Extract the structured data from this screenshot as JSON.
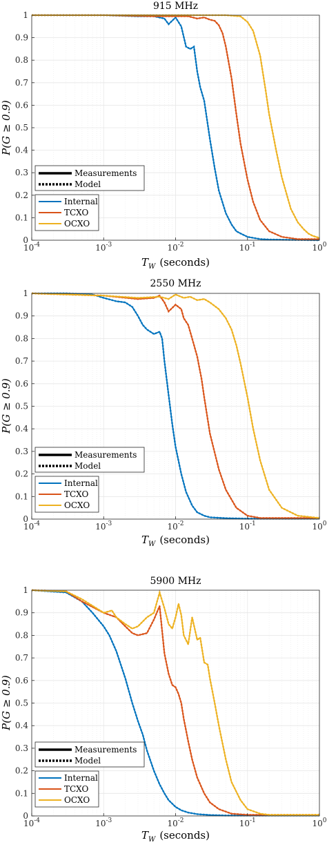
{
  "figure": {
    "x_tick_labels": [
      "10",
      "10",
      "10",
      "10",
      "10"
    ],
    "x_tick_exponents": [
      "-4",
      "-3",
      "-2",
      "-1",
      "0"
    ],
    "y_tick_labels": [
      "0",
      "0.1",
      "0.2",
      "0.3",
      "0.4",
      "0.5",
      "0.6",
      "0.7",
      "0.8",
      "0.9",
      "1"
    ],
    "xlabel_var": "T",
    "xlabel_sub": "W",
    "xlabel_unit": "(seconds)",
    "ylabel": "P(G ≥ 0.9)",
    "legend_styles": [
      "Measurements",
      "Model"
    ],
    "colors": {
      "Internal": "#0072BD",
      "TCXO": "#D95319",
      "OCXO": "#EDB120",
      "grid": "#e6e6e6",
      "axis": "#262626"
    }
  },
  "chart_data": [
    {
      "type": "line",
      "title": "915 MHz",
      "x_scale": "log",
      "xlim": [
        0.0001,
        1
      ],
      "ylim": [
        0,
        1
      ],
      "grid": true,
      "legend_location": "bottom-left",
      "series": [
        {
          "name": "Internal",
          "x": [
            0.0001,
            0.0003,
            0.001,
            0.003,
            0.005,
            0.007,
            0.008,
            0.01,
            0.012,
            0.014,
            0.016,
            0.018,
            0.02,
            0.022,
            0.025,
            0.03,
            0.035,
            0.04,
            0.05,
            0.06,
            0.07,
            0.08,
            0.1,
            0.15,
            0.2,
            1
          ],
          "y": [
            1,
            1,
            1,
            0.995,
            0.995,
            0.985,
            0.96,
            0.99,
            0.95,
            0.86,
            0.85,
            0.86,
            0.75,
            0.68,
            0.62,
            0.45,
            0.32,
            0.22,
            0.12,
            0.07,
            0.04,
            0.03,
            0.015,
            0.005,
            0.003,
            0
          ]
        },
        {
          "name": "TCXO",
          "x": [
            0.0001,
            0.001,
            0.005,
            0.01,
            0.015,
            0.02,
            0.025,
            0.03,
            0.035,
            0.04,
            0.045,
            0.05,
            0.06,
            0.07,
            0.08,
            0.1,
            0.12,
            0.15,
            0.2,
            0.3,
            0.5,
            1
          ],
          "y": [
            1,
            1,
            0.995,
            0.995,
            0.995,
            0.985,
            0.99,
            0.98,
            0.975,
            0.955,
            0.92,
            0.86,
            0.72,
            0.56,
            0.43,
            0.27,
            0.17,
            0.09,
            0.04,
            0.015,
            0.005,
            0.005
          ]
        },
        {
          "name": "OCXO",
          "x": [
            0.0001,
            0.001,
            0.01,
            0.05,
            0.08,
            0.1,
            0.12,
            0.15,
            0.18,
            0.2,
            0.25,
            0.3,
            0.4,
            0.5,
            0.6,
            0.7,
            0.8,
            1
          ],
          "y": [
            1,
            1,
            1,
            1,
            0.995,
            0.97,
            0.93,
            0.82,
            0.66,
            0.56,
            0.4,
            0.28,
            0.14,
            0.08,
            0.05,
            0.03,
            0.02,
            0.01
          ]
        }
      ]
    },
    {
      "type": "line",
      "title": "2550 MHz",
      "x_scale": "log",
      "xlim": [
        0.0001,
        1
      ],
      "ylim": [
        0,
        1
      ],
      "grid": true,
      "legend_location": "bottom-left",
      "series": [
        {
          "name": "Internal",
          "x": [
            0.0001,
            0.0003,
            0.0007,
            0.001,
            0.0015,
            0.002,
            0.0025,
            0.003,
            0.0035,
            0.004,
            0.005,
            0.006,
            0.0065,
            0.007,
            0.008,
            0.009,
            0.01,
            0.012,
            0.014,
            0.017,
            0.02,
            0.025,
            0.03,
            0.05,
            0.1,
            1
          ],
          "y": [
            1,
            1,
            0.995,
            0.98,
            0.965,
            0.96,
            0.94,
            0.9,
            0.86,
            0.84,
            0.82,
            0.83,
            0.8,
            0.7,
            0.55,
            0.42,
            0.32,
            0.2,
            0.12,
            0.06,
            0.03,
            0.015,
            0.008,
            0.004,
            0.002,
            0.002
          ]
        },
        {
          "name": "TCXO",
          "x": [
            0.0001,
            0.001,
            0.003,
            0.005,
            0.006,
            0.007,
            0.008,
            0.01,
            0.012,
            0.013,
            0.015,
            0.017,
            0.02,
            0.023,
            0.025,
            0.03,
            0.04,
            0.05,
            0.07,
            0.1,
            0.15,
            1
          ],
          "y": [
            1,
            0.99,
            0.975,
            0.98,
            0.99,
            0.96,
            0.92,
            0.95,
            0.93,
            0.89,
            0.86,
            0.8,
            0.72,
            0.62,
            0.54,
            0.38,
            0.22,
            0.13,
            0.05,
            0.015,
            0.005,
            0.005
          ]
        },
        {
          "name": "OCXO",
          "x": [
            0.0001,
            0.001,
            0.003,
            0.006,
            0.008,
            0.01,
            0.013,
            0.016,
            0.02,
            0.025,
            0.03,
            0.04,
            0.05,
            0.06,
            0.07,
            0.08,
            0.1,
            0.12,
            0.15,
            0.2,
            0.3,
            0.5,
            1
          ],
          "y": [
            1,
            0.99,
            0.98,
            0.985,
            0.975,
            0.995,
            0.98,
            0.985,
            0.97,
            0.975,
            0.96,
            0.93,
            0.89,
            0.84,
            0.77,
            0.69,
            0.54,
            0.4,
            0.26,
            0.13,
            0.05,
            0.015,
            0.005
          ]
        }
      ]
    },
    {
      "type": "line",
      "title": "5900 MHz",
      "x_scale": "log",
      "xlim": [
        0.0001,
        1
      ],
      "ylim": [
        0,
        1
      ],
      "grid": true,
      "legend_location": "bottom-left",
      "series": [
        {
          "name": "Internal",
          "x": [
            0.0001,
            0.0003,
            0.0005,
            0.0007,
            0.001,
            0.0012,
            0.0015,
            0.002,
            0.0025,
            0.003,
            0.0035,
            0.004,
            0.005,
            0.006,
            0.007,
            0.008,
            0.01,
            0.012,
            0.015,
            0.02,
            0.03,
            0.05,
            1
          ],
          "y": [
            1,
            0.99,
            0.95,
            0.9,
            0.84,
            0.8,
            0.73,
            0.61,
            0.5,
            0.42,
            0.36,
            0.29,
            0.2,
            0.14,
            0.1,
            0.07,
            0.04,
            0.025,
            0.015,
            0.008,
            0.004,
            0.002,
            0.002
          ]
        },
        {
          "name": "TCXO",
          "x": [
            0.0001,
            0.0003,
            0.0005,
            0.001,
            0.0015,
            0.002,
            0.0025,
            0.003,
            0.004,
            0.005,
            0.006,
            0.0065,
            0.007,
            0.008,
            0.009,
            0.01,
            0.011,
            0.012,
            0.013,
            0.015,
            0.017,
            0.02,
            0.025,
            0.03,
            0.04,
            0.06,
            0.1,
            1
          ],
          "y": [
            1,
            0.995,
            0.95,
            0.9,
            0.88,
            0.84,
            0.81,
            0.8,
            0.81,
            0.87,
            0.93,
            0.82,
            0.72,
            0.63,
            0.58,
            0.57,
            0.54,
            0.5,
            0.43,
            0.33,
            0.25,
            0.17,
            0.1,
            0.06,
            0.03,
            0.01,
            0.005,
            0.005
          ]
        },
        {
          "name": "OCXO",
          "x": [
            0.0001,
            0.0003,
            0.0005,
            0.001,
            0.0013,
            0.0015,
            0.002,
            0.0025,
            0.003,
            0.004,
            0.005,
            0.006,
            0.007,
            0.008,
            0.009,
            0.01,
            0.011,
            0.012,
            0.013,
            0.015,
            0.017,
            0.02,
            0.022,
            0.025,
            0.028,
            0.03,
            0.035,
            0.04,
            0.05,
            0.06,
            0.08,
            0.1,
            0.15,
            0.2,
            1
          ],
          "y": [
            1,
            0.995,
            0.96,
            0.9,
            0.91,
            0.88,
            0.85,
            0.83,
            0.84,
            0.88,
            0.9,
            0.99,
            0.92,
            0.85,
            0.83,
            0.88,
            0.94,
            0.89,
            0.8,
            0.76,
            0.88,
            0.78,
            0.79,
            0.68,
            0.67,
            0.61,
            0.5,
            0.4,
            0.25,
            0.15,
            0.07,
            0.03,
            0.01,
            0.005,
            0.005
          ]
        }
      ]
    }
  ]
}
